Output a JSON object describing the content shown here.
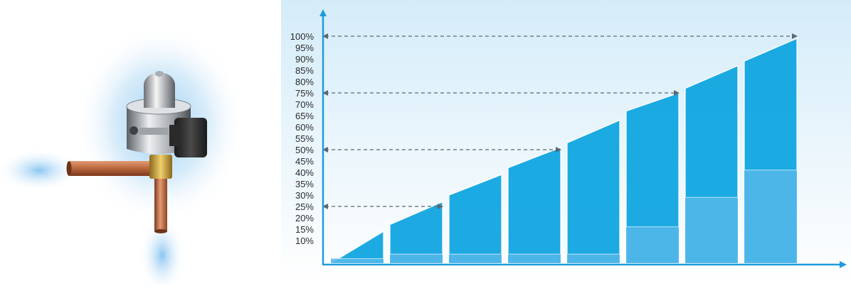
{
  "colors": {
    "panel_top": "#d4ecf9",
    "panel_bottom": "#ffffff",
    "bar_fill": "#0aa3e0",
    "bar_edge": "#ffffff",
    "axis": "#1f9bdc",
    "arrow": "#5b6772",
    "copper": "#b8663c",
    "glow": "#7fc3f0"
  },
  "illustration": {
    "subject": "expansion valve with copper inlet and outlet pipes",
    "icon": "valve-icon"
  },
  "chart_data": {
    "type": "bar",
    "title": "",
    "xlabel": "",
    "ylabel": "",
    "ylim": [
      0,
      100
    ],
    "yticks": [
      "10%",
      "15%",
      "20%",
      "25%",
      "30%",
      "35%",
      "40%",
      "45%",
      "50%",
      "55%",
      "60%",
      "65%",
      "70%",
      "75%",
      "80%",
      "85%",
      "90%",
      "95%",
      "100%"
    ],
    "ytick_values": [
      10,
      15,
      20,
      25,
      30,
      35,
      40,
      45,
      50,
      55,
      60,
      65,
      70,
      75,
      80,
      85,
      90,
      95,
      100
    ],
    "bars": [
      {
        "start": 0,
        "end": 14,
        "base": 2
      },
      {
        "start": 17,
        "end": 27,
        "base": 4
      },
      {
        "start": 30,
        "end": 39,
        "base": 4
      },
      {
        "start": 42,
        "end": 51,
        "base": 4
      },
      {
        "start": 53,
        "end": 63,
        "base": 4
      },
      {
        "start": 67,
        "end": 75,
        "base": 16
      },
      {
        "start": 77,
        "end": 87,
        "base": 29
      },
      {
        "start": 89,
        "end": 99,
        "base": 41
      }
    ],
    "reference_arrows": [
      25,
      50,
      75,
      100
    ],
    "grid": false,
    "legend": "none"
  }
}
